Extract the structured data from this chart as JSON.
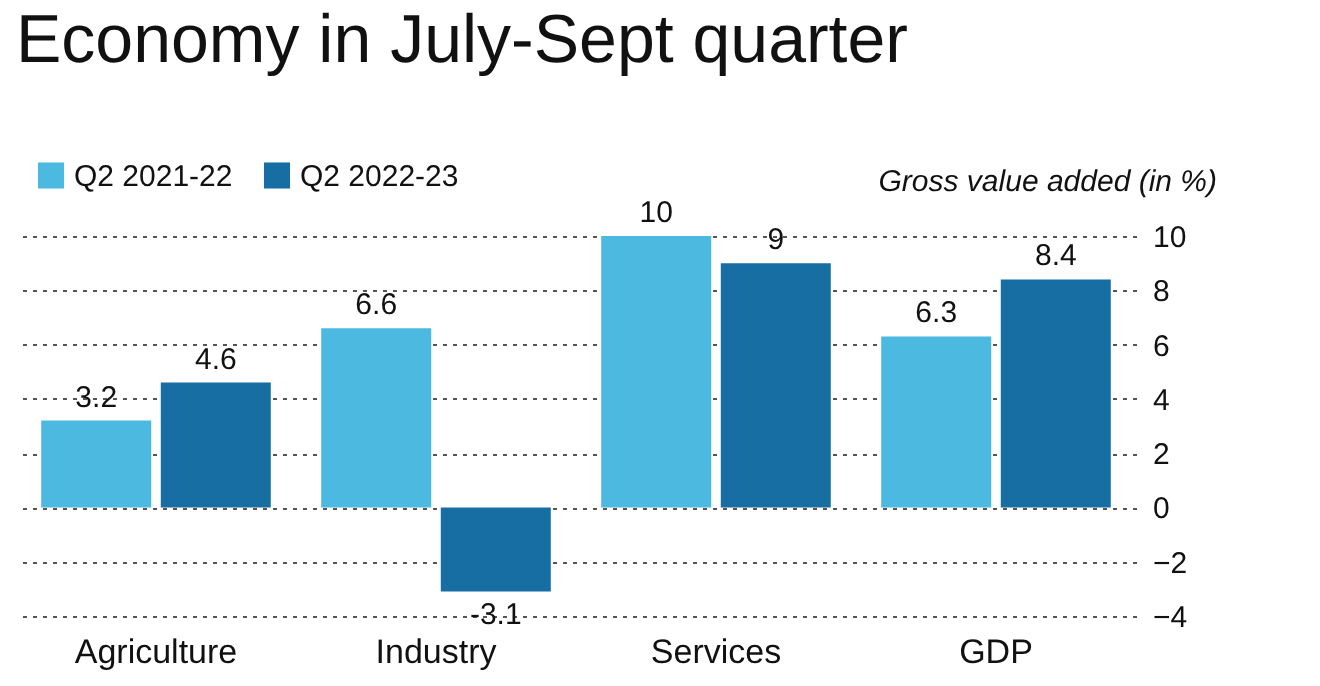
{
  "chart_data": {
    "type": "bar",
    "title": "Economy in July-Sept quarter",
    "ylabel": "Gross value added (in %)",
    "categories": [
      "Agriculture",
      "Industry",
      "Services",
      "GDP"
    ],
    "series": [
      {
        "name": "Q2 2021-22",
        "color": "#4bb9e0",
        "values": [
          3.2,
          6.6,
          10,
          6.3
        ]
      },
      {
        "name": "Q2 2022-23",
        "color": "#176ea3",
        "values": [
          4.6,
          -3.1,
          9,
          8.4
        ]
      }
    ],
    "ylim": [
      -4,
      10
    ],
    "yticks": [
      -4,
      -2,
      0,
      2,
      4,
      6,
      8,
      10
    ],
    "grid": "y",
    "legend": "top left",
    "data_labels": true
  }
}
